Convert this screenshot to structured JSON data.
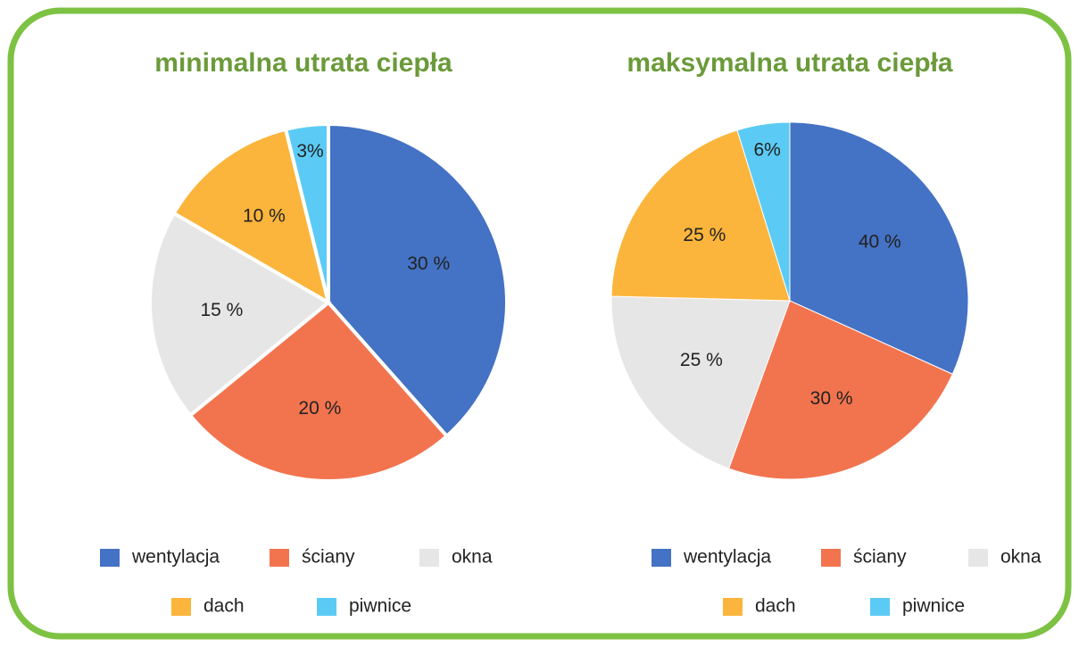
{
  "chart_data": [
    {
      "type": "pie",
      "title": "minimalna utrata ciepła",
      "categories": [
        "wentylacja",
        "ściany",
        "okna",
        "dach",
        "piwnice"
      ],
      "values": [
        30,
        20,
        15,
        10,
        3
      ],
      "value_labels": [
        "30 %",
        "20 %",
        "15 %",
        "10 %",
        "3%"
      ],
      "colors": [
        "#4472c4",
        "#f2744f",
        "#e6e6e6",
        "#fbb53c",
        "#5bcbf5"
      ]
    },
    {
      "type": "pie",
      "title": "maksymalna utrata ciepła",
      "categories": [
        "wentylacja",
        "ściany",
        "okna",
        "dach",
        "piwnice"
      ],
      "values": [
        40,
        30,
        25,
        25,
        6
      ],
      "value_labels": [
        "40 %",
        "30 %",
        "25 %",
        "25 %",
        "6%"
      ],
      "colors": [
        "#4472c4",
        "#f2744f",
        "#e6e6e6",
        "#fbb53c",
        "#5bcbf5"
      ]
    }
  ]
}
